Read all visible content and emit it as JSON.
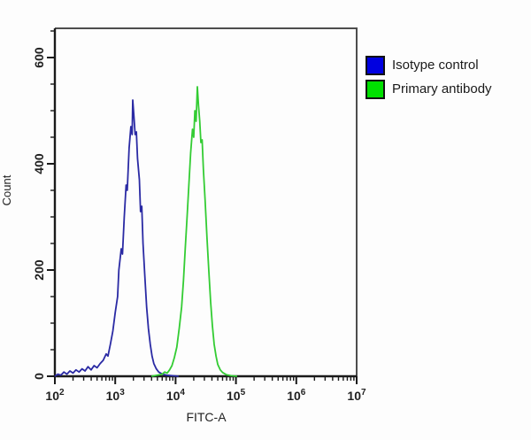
{
  "legend": {
    "entries": [
      {
        "label": "Isotype control",
        "swatch_color": "#0000e0"
      },
      {
        "label": "Primary antibody",
        "swatch_color": "#00e000"
      }
    ]
  },
  "chart_data": {
    "type": "line",
    "subtype": "flow-cytometry-histogram-overlay",
    "title": "",
    "xlabel": "FITC-A",
    "ylabel": "Count",
    "x_scale": "log10",
    "xlim_log10": [
      2,
      7
    ],
    "x_tick_exponents": [
      2,
      3,
      4,
      5,
      6,
      7
    ],
    "ylim": [
      0,
      655
    ],
    "y_ticks": [
      0,
      200,
      400,
      600
    ],
    "y_minor_step": 50,
    "grid": false,
    "legend_position": "outside-right-top",
    "series": [
      {
        "name": "Isotype control",
        "color": "#2a2aa4",
        "peak_log10x": 3.29,
        "peak_count": 520,
        "points": [
          [
            2.0,
            0
          ],
          [
            2.05,
            4
          ],
          [
            2.1,
            2
          ],
          [
            2.15,
            8
          ],
          [
            2.2,
            4
          ],
          [
            2.25,
            10
          ],
          [
            2.3,
            6
          ],
          [
            2.35,
            12
          ],
          [
            2.4,
            8
          ],
          [
            2.45,
            14
          ],
          [
            2.5,
            10
          ],
          [
            2.55,
            18
          ],
          [
            2.6,
            12
          ],
          [
            2.65,
            20
          ],
          [
            2.7,
            16
          ],
          [
            2.75,
            24
          ],
          [
            2.8,
            30
          ],
          [
            2.85,
            42
          ],
          [
            2.88,
            38
          ],
          [
            2.92,
            60
          ],
          [
            2.96,
            85
          ],
          [
            3.0,
            120
          ],
          [
            3.04,
            150
          ],
          [
            3.06,
            200
          ],
          [
            3.1,
            240
          ],
          [
            3.12,
            230
          ],
          [
            3.15,
            300
          ],
          [
            3.18,
            360
          ],
          [
            3.2,
            350
          ],
          [
            3.23,
            430
          ],
          [
            3.26,
            470
          ],
          [
            3.28,
            455
          ],
          [
            3.29,
            520
          ],
          [
            3.31,
            490
          ],
          [
            3.33,
            455
          ],
          [
            3.35,
            460
          ],
          [
            3.37,
            410
          ],
          [
            3.4,
            370
          ],
          [
            3.42,
            310
          ],
          [
            3.44,
            320
          ],
          [
            3.46,
            250
          ],
          [
            3.49,
            190
          ],
          [
            3.52,
            130
          ],
          [
            3.55,
            90
          ],
          [
            3.58,
            60
          ],
          [
            3.61,
            38
          ],
          [
            3.64,
            24
          ],
          [
            3.68,
            14
          ],
          [
            3.72,
            8
          ],
          [
            3.78,
            4
          ],
          [
            3.85,
            2
          ],
          [
            3.95,
            1
          ],
          [
            4.05,
            0
          ]
        ]
      },
      {
        "name": "Primary antibody",
        "color": "#33cc33",
        "peak_log10x": 4.36,
        "peak_count": 545,
        "points": [
          [
            3.6,
            0
          ],
          [
            3.7,
            2
          ],
          [
            3.78,
            4
          ],
          [
            3.82,
            8
          ],
          [
            3.86,
            6
          ],
          [
            3.9,
            12
          ],
          [
            3.94,
            20
          ],
          [
            3.98,
            35
          ],
          [
            4.02,
            55
          ],
          [
            4.06,
            90
          ],
          [
            4.1,
            130
          ],
          [
            4.13,
            180
          ],
          [
            4.16,
            240
          ],
          [
            4.19,
            300
          ],
          [
            4.22,
            360
          ],
          [
            4.25,
            420
          ],
          [
            4.28,
            465
          ],
          [
            4.3,
            450
          ],
          [
            4.32,
            500
          ],
          [
            4.34,
            480
          ],
          [
            4.36,
            545
          ],
          [
            4.38,
            510
          ],
          [
            4.4,
            480
          ],
          [
            4.42,
            440
          ],
          [
            4.44,
            445
          ],
          [
            4.46,
            390
          ],
          [
            4.49,
            330
          ],
          [
            4.52,
            260
          ],
          [
            4.55,
            200
          ],
          [
            4.58,
            140
          ],
          [
            4.61,
            95
          ],
          [
            4.64,
            60
          ],
          [
            4.67,
            38
          ],
          [
            4.7,
            22
          ],
          [
            4.74,
            12
          ],
          [
            4.78,
            7
          ],
          [
            4.84,
            3
          ],
          [
            4.92,
            1
          ],
          [
            5.02,
            0
          ]
        ]
      }
    ]
  }
}
